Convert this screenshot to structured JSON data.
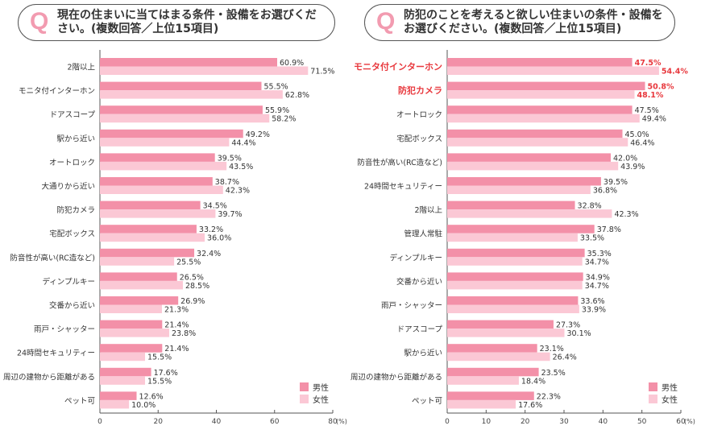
{
  "colors": {
    "male": "#f390a8",
    "female": "#fbc8d5",
    "highlight": "#e8383d",
    "axis": "#555555"
  },
  "legend": {
    "male": "男性",
    "female": "女性"
  },
  "chart_data": [
    {
      "type": "bar",
      "orientation": "horizontal",
      "title": "現在の住まいに当てはまる条件・設備をお選びください。(複数回答／上位15項目)",
      "q_mark": "Q",
      "xlim": [
        0,
        80
      ],
      "xticks": [
        "0",
        "20",
        "40",
        "60",
        "80"
      ],
      "xunit": "(%)",
      "categories": [
        "2階以上",
        "モニタ付インターホン",
        "ドアスコープ",
        "駅から近い",
        "オートロック",
        "大通りから近い",
        "防犯カメラ",
        "宅配ボックス",
        "防音性が高い(RC造など)",
        "ディンプルキー",
        "交番から近い",
        "雨戸・シャッター",
        "24時間セキュリティー",
        "周辺の建物から距離がある",
        "ペット可"
      ],
      "highlighted": [],
      "series": [
        {
          "name": "男性",
          "values": [
            60.9,
            55.5,
            55.9,
            49.2,
            39.5,
            38.7,
            34.5,
            33.2,
            32.4,
            26.5,
            26.9,
            21.4,
            21.4,
            17.6,
            12.6
          ],
          "labels": [
            "60.9%",
            "55.5%",
            "55.9%",
            "49.2%",
            "39.5%",
            "38.7%",
            "34.5%",
            "33.2%",
            "32.4%",
            "26.5%",
            "26.9%",
            "21.4%",
            "21.4%",
            "17.6%",
            "12.6%"
          ]
        },
        {
          "name": "女性",
          "values": [
            71.5,
            62.8,
            58.2,
            44.4,
            43.5,
            42.3,
            39.7,
            36.0,
            25.5,
            28.5,
            21.3,
            23.8,
            15.5,
            15.5,
            10.0
          ],
          "labels": [
            "71.5%",
            "62.8%",
            "58.2%",
            "44.4%",
            "43.5%",
            "42.3%",
            "39.7%",
            "36.0%",
            "25.5%",
            "28.5%",
            "21.3%",
            "23.8%",
            "15.5%",
            "15.5%",
            "10.0%"
          ]
        }
      ],
      "legend": "bottom-right"
    },
    {
      "type": "bar",
      "orientation": "horizontal",
      "title": "防犯のことを考えると欲しい住まいの条件・設備をお選びください。(複数回答／上位15項目)",
      "q_mark": "Q",
      "xlim": [
        0,
        60
      ],
      "xticks": [
        "0",
        "10",
        "20",
        "30",
        "40",
        "50",
        "60"
      ],
      "xunit": "(%)",
      "categories": [
        "モニタ付インターホン",
        "防犯カメラ",
        "オートロック",
        "宅配ボックス",
        "防音性が高い(RC造など)",
        "24時間セキュリティー",
        "2階以上",
        "管理人常駐",
        "ディンプルキー",
        "交番から近い",
        "雨戸・シャッター",
        "ドアスコープ",
        "駅から近い",
        "周辺の建物から距離がある",
        "ペット可"
      ],
      "highlighted": [
        0,
        1
      ],
      "series": [
        {
          "name": "男性",
          "values": [
            47.5,
            50.8,
            47.5,
            45.0,
            42.0,
            39.5,
            32.8,
            37.8,
            35.3,
            34.9,
            33.6,
            27.3,
            23.1,
            23.5,
            22.3
          ],
          "labels": [
            "47.5%",
            "50.8%",
            "47.5%",
            "45.0%",
            "42.0%",
            "39.5%",
            "32.8%",
            "37.8%",
            "35.3%",
            "34.9%",
            "33.6%",
            "27.3%",
            "23.1%",
            "23.5%",
            "22.3%"
          ]
        },
        {
          "name": "女性",
          "values": [
            54.4,
            48.1,
            49.4,
            46.4,
            43.9,
            36.8,
            42.3,
            33.5,
            34.7,
            34.7,
            33.9,
            30.1,
            26.4,
            18.4,
            17.6
          ],
          "labels": [
            "54.4%",
            "48.1%",
            "49.4%",
            "46.4%",
            "43.9%",
            "36.8%",
            "42.3%",
            "33.5%",
            "34.7%",
            "34.7%",
            "33.9%",
            "30.1%",
            "26.4%",
            "18.4%",
            "17.6%"
          ]
        }
      ],
      "legend": "bottom-right"
    }
  ]
}
